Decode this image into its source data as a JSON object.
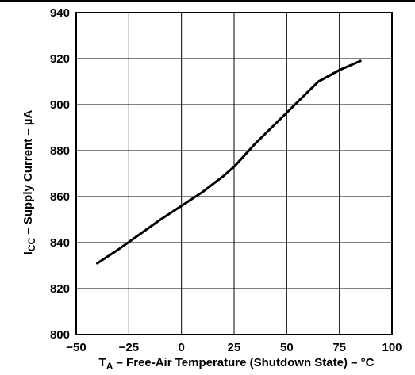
{
  "chart_data": {
    "type": "line",
    "title": "",
    "xlabel": {
      "symbol": "T",
      "subscript": "A",
      "text": " – Free-Air Temperature (Shutdown State) – °C"
    },
    "ylabel": {
      "symbol": "I",
      "subscript": "CC",
      "text": " – Supply Current – µA"
    },
    "xlim": [
      -50,
      100
    ],
    "ylim": [
      800,
      940
    ],
    "xticks": [
      -50,
      -25,
      0,
      25,
      50,
      75,
      100
    ],
    "yticks": [
      800,
      820,
      840,
      860,
      880,
      900,
      920,
      940
    ],
    "grid": true,
    "series": [
      {
        "x": [
          -40,
          -30,
          -20,
          -10,
          0,
          10,
          20,
          25,
          35,
          45,
          55,
          65,
          75,
          85
        ],
        "values": [
          831,
          837,
          843.5,
          850,
          856,
          862,
          869,
          873,
          883,
          892,
          901,
          910,
          915,
          919
        ],
        "color": "#000000"
      }
    ]
  }
}
